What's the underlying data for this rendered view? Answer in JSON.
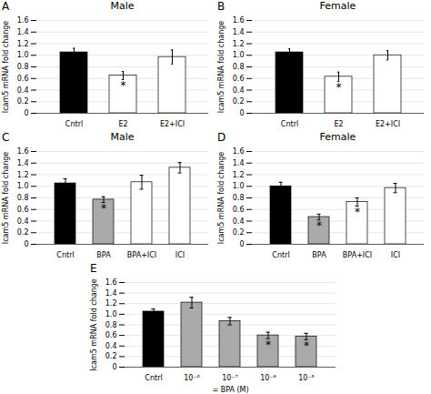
{
  "chart_data": [
    {
      "type": "bar",
      "panel_label": "A",
      "title": "Male",
      "categories": [
        "Cntrl",
        "E2",
        "E2+ICI"
      ],
      "values": [
        1.05,
        0.65,
        0.97
      ],
      "errors": [
        0.07,
        0.07,
        0.12
      ],
      "colors": [
        "black",
        "white",
        "white"
      ],
      "annotations": [
        {
          "category": "E2",
          "text": "*"
        }
      ],
      "ylabel": "Icam5 mRNA fold change",
      "ylim": [
        0,
        1.6
      ],
      "yticks": [
        0,
        0.2,
        0.4,
        0.6,
        0.8,
        {
          "value": 1,
          "label": "1.0"
        },
        1.2,
        1.4,
        1.6
      ],
      "grid": true
    },
    {
      "type": "bar",
      "panel_label": "B",
      "title": "Female",
      "categories": [
        "Cntrl",
        "E2",
        "E2+ICI"
      ],
      "values": [
        1.05,
        0.63,
        1.0
      ],
      "errors": [
        0.06,
        0.08,
        0.08
      ],
      "colors": [
        "black",
        "white",
        "white"
      ],
      "annotations": [
        {
          "category": "E2",
          "text": "*"
        }
      ],
      "ylabel": "Icam5 mRNA fold change",
      "ylim": [
        0,
        1.6
      ],
      "yticks": [
        0,
        0.2,
        0.4,
        0.6,
        0.8,
        {
          "value": 1,
          "label": "1.0"
        },
        1.2,
        1.4,
        1.6
      ],
      "grid": true
    },
    {
      "type": "bar",
      "panel_label": "C",
      "title": "Male",
      "categories": [
        "Cntrl",
        "BPA",
        "BPA+ICI",
        "ICI"
      ],
      "values": [
        1.05,
        0.77,
        1.07,
        1.32
      ],
      "errors": [
        0.08,
        0.05,
        0.12,
        0.09
      ],
      "colors": [
        "black",
        "#aaaaaa",
        "white",
        "white"
      ],
      "annotations": [
        {
          "category": "BPA",
          "text": "*"
        }
      ],
      "ylabel": "Icam5 mRNA fold change",
      "ylim": [
        0,
        1.6
      ],
      "yticks": [
        0,
        0.2,
        0.4,
        0.6,
        0.8,
        {
          "value": 1,
          "label": "1.0"
        },
        1.2,
        1.4,
        1.6
      ],
      "grid": true
    },
    {
      "type": "bar",
      "panel_label": "D",
      "title": "Female",
      "categories": [
        "Cntrl",
        "BPA",
        "BPA+ICI",
        "ICI"
      ],
      "values": [
        1.0,
        0.47,
        0.73,
        0.97
      ],
      "errors": [
        0.07,
        0.05,
        0.07,
        0.08
      ],
      "colors": [
        "black",
        "#aaaaaa",
        "white",
        "white"
      ],
      "annotations": [
        {
          "category": "BPA",
          "text": "*"
        },
        {
          "category": "BPA+ICI",
          "text": "*"
        }
      ],
      "ylabel": "Icam5 mRNA fold change",
      "ylim": [
        0,
        1.6
      ],
      "yticks": [
        0,
        0.2,
        0.4,
        0.6,
        0.8,
        {
          "value": 1,
          "label": "1.0"
        },
        1.2,
        1.4,
        1.6
      ],
      "grid": true
    },
    {
      "type": "bar",
      "panel_label": "E",
      "categories": [
        "Cntrl",
        "10⁻⁶",
        "10⁻⁷",
        "10⁻⁸",
        "10⁻⁵"
      ],
      "values": [
        1.05,
        1.22,
        0.87,
        0.6,
        0.58
      ],
      "errors": [
        0.05,
        0.1,
        0.07,
        0.06,
        0.06
      ],
      "colors": [
        "black",
        "#aaaaaa",
        "#aaaaaa",
        "#aaaaaa",
        "#aaaaaa"
      ],
      "annotations": [
        {
          "category": "10⁻⁸",
          "text": "*"
        },
        {
          "category": "10⁻⁵",
          "text": "*"
        }
      ],
      "xlabel": "= BPA (M)",
      "ylabel": "Icam5 mRNA fold change",
      "ylim": [
        0,
        1.6
      ],
      "yticks": [
        0,
        0.2,
        0.4,
        0.6,
        0.8,
        {
          "value": 1,
          "label": "1.0"
        },
        1.2,
        1.4,
        1.6
      ],
      "grid": true
    }
  ]
}
